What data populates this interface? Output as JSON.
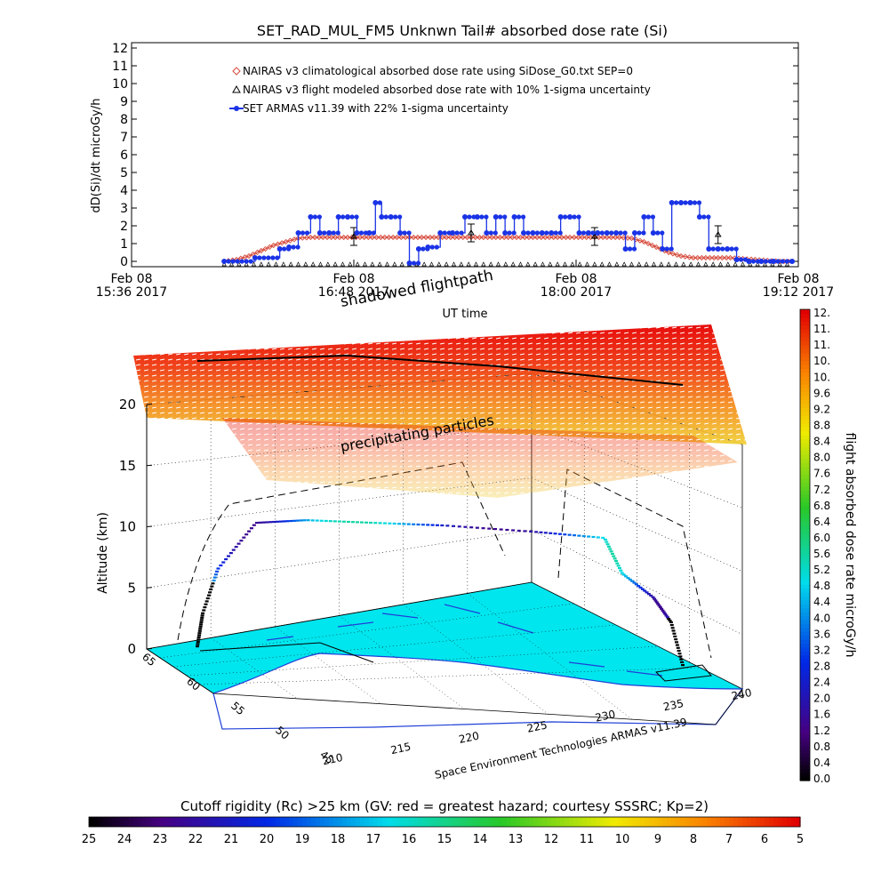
{
  "chart_data": [
    {
      "type": "line",
      "title": "SET_RAD_MUL_FM5 Unknwn Tail#  absorbed dose rate (Si)",
      "ylabel": "dD(Si)/dt microGy/h",
      "xlabel": "UT time",
      "ylim": [
        0,
        12
      ],
      "yticks": [
        "0",
        "1",
        "2",
        "3",
        "4",
        "5",
        "6",
        "7",
        "8",
        "9",
        "10",
        "11",
        "12"
      ],
      "xlim_minutes": [
        0,
        216
      ],
      "xticks": [
        {
          "date": "Feb 08",
          "time": "15:36 2017"
        },
        {
          "date": "Feb 08",
          "time": "16:48 2017"
        },
        {
          "date": "Feb 08",
          "time": "18:00 2017"
        },
        {
          "date": "Feb 08",
          "time": "19:12 2017"
        }
      ],
      "legend_position": "top-left",
      "series": [
        {
          "name": "NAIRAS v3 climatological absorbed dose rate using SiDose_G0.txt SEP=0",
          "color": "#d64a3c",
          "marker": "diamond",
          "x": [
            30,
            34,
            38,
            42,
            46,
            50,
            54,
            58,
            62,
            66,
            70,
            74,
            78,
            82,
            86,
            90,
            94,
            98,
            102,
            106,
            110,
            114,
            118,
            122,
            126,
            130,
            134,
            138,
            142,
            146,
            150,
            154,
            158,
            162,
            166,
            170,
            174,
            178,
            182,
            186,
            190,
            194,
            198,
            202,
            206,
            210,
            214
          ],
          "y": [
            0,
            0.1,
            0.3,
            0.6,
            0.9,
            1.1,
            1.3,
            1.35,
            1.35,
            1.35,
            1.35,
            1.35,
            1.35,
            1.35,
            1.35,
            1.35,
            1.35,
            1.35,
            1.35,
            1.35,
            1.35,
            1.35,
            1.35,
            1.35,
            1.35,
            1.35,
            1.35,
            1.35,
            1.35,
            1.35,
            1.35,
            1.35,
            1.35,
            1.3,
            1.1,
            0.8,
            0.5,
            0.3,
            0.2,
            0.2,
            0.2,
            0.2,
            0.15,
            0.1,
            0.05,
            0,
            0
          ]
        },
        {
          "name": "NAIRAS v3 flight modeled absorbed dose rate with 10% 1-sigma uncertainty",
          "color": "#000000",
          "marker": "triangle",
          "x": [
            72,
            110,
            150,
            190
          ],
          "y": [
            1.4,
            1.6,
            1.4,
            1.5
          ]
        },
        {
          "name": "SET ARMAS v11.39 with 22% 1-sigma uncertainty",
          "color": "#1a33e6",
          "marker": "circle",
          "x": [
            30,
            40,
            48,
            51,
            54,
            58,
            61,
            64,
            67,
            70,
            73,
            77,
            79,
            81,
            84,
            87,
            90,
            93,
            96,
            100,
            104,
            108,
            112,
            115,
            118,
            121,
            124,
            127,
            130,
            133,
            136,
            139,
            142,
            145,
            148,
            151,
            154,
            157,
            160,
            163,
            166,
            169,
            172,
            175,
            178,
            181,
            184,
            187,
            190,
            193,
            196,
            200,
            204,
            208,
            214
          ],
          "y": [
            0,
            0.2,
            0.7,
            0.8,
            1.6,
            2.5,
            1.6,
            1.6,
            2.5,
            2.5,
            1.6,
            1.6,
            3.3,
            2.5,
            2.5,
            1.6,
            -0.1,
            0.7,
            0.8,
            1.6,
            1.6,
            2.5,
            2.5,
            1.6,
            2.5,
            1.6,
            2.5,
            1.6,
            1.6,
            1.6,
            1.6,
            2.5,
            2.5,
            1.6,
            1.6,
            1.6,
            1.6,
            1.6,
            0.7,
            1.6,
            2.5,
            1.6,
            0.7,
            3.3,
            3.3,
            3.3,
            2.5,
            0.7,
            0.7,
            0.7,
            0.1,
            0,
            0,
            0,
            0
          ]
        }
      ]
    },
    {
      "type": "scatter",
      "title": "",
      "zlabel": "Altitude (km)",
      "zlim": [
        0,
        20
      ],
      "zticks": [
        "0",
        "5",
        "10",
        "15",
        "20"
      ],
      "x_ticks": [
        "210",
        "215",
        "220",
        "225",
        "230",
        "235",
        "240"
      ],
      "y_ticks": [
        "45",
        "50",
        "55",
        "60",
        "65"
      ],
      "annotations": [
        "shadowed flightpath",
        "precipitating particles",
        "Space Environment Technologies ARMAS v11.39"
      ],
      "series": [
        {
          "name": "",
          "x": [
            0,
            0.05,
            0.1,
            0.2,
            0.3,
            0.4,
            0.5,
            0.6,
            0.7,
            0.8,
            0.85,
            0.9,
            0.95,
            1
          ],
          "y": [
            0.5,
            1.5,
            4,
            10.5,
            10.5,
            10.3,
            10.1,
            10,
            9.8,
            9.7,
            7.2,
            5,
            2.5,
            0.2
          ]
        }
      ]
    },
    {
      "type": "heatmap",
      "colorbar_label": "flight absorbed dose rate microGy/h",
      "ticks": [
        "0.0",
        "0.4",
        "0.8",
        "1.2",
        "1.6",
        "2.0",
        "2.4",
        "2.8",
        "3.2",
        "3.6",
        "4.0",
        "4.4",
        "4.8",
        "5.2",
        "5.6",
        "6.0",
        "6.4",
        "6.8",
        "7.2",
        "7.6",
        "8.0",
        "8.4",
        "8.8",
        "9.2",
        "9.6",
        "10.",
        "10.",
        "11.",
        "11.",
        "12."
      ],
      "range": [
        0,
        12
      ]
    },
    {
      "type": "heatmap",
      "colorbar_label": "Cutoff rigidity (Rc) >25 km (GV: red = greatest hazard; courtesy SSSRC; Kp=2)",
      "ticks": [
        "25",
        "24",
        "23",
        "22",
        "21",
        "20",
        "19",
        "18",
        "17",
        "16",
        "15",
        "14",
        "13",
        "12",
        "11",
        "10",
        "9",
        "8",
        "7",
        "6",
        "5"
      ],
      "range": [
        25,
        5
      ]
    }
  ],
  "colors": {
    "nairas_clim": "#d64a3c",
    "armas": "#1a33e6",
    "nairas_flight": "#000000",
    "ocean": "#00e6ee",
    "land": "#ffffff",
    "coast": "#1f3fd8"
  }
}
